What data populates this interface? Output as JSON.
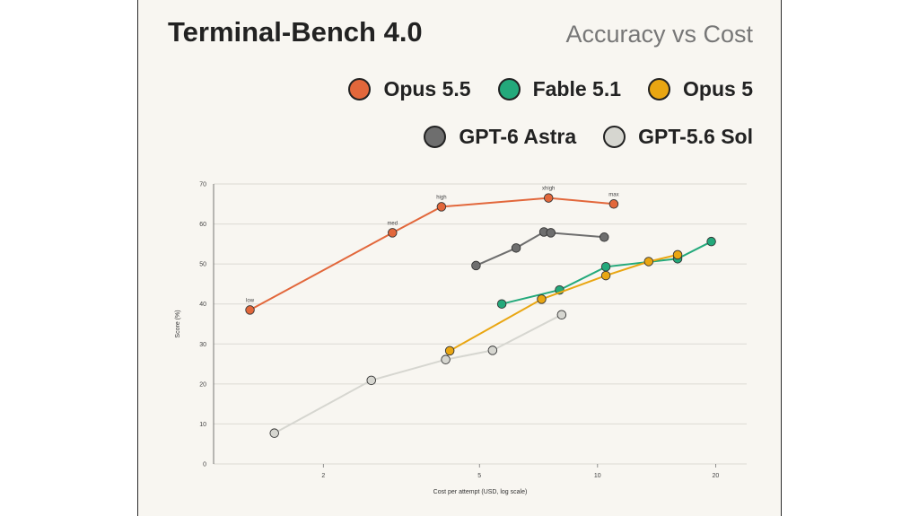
{
  "title": "Terminal-Bench 4.0",
  "subtitle": "Accuracy vs Cost",
  "legend": [
    {
      "name": "Opus 5.5",
      "color": "#e2673b"
    },
    {
      "name": "Fable 5.1",
      "color": "#23a97b"
    },
    {
      "name": "Opus 5",
      "color": "#e9a612"
    },
    {
      "name": "GPT-6 Astra",
      "color": "#6e6e6e"
    },
    {
      "name": "GPT-5.6 Sol",
      "color": "#d6d6d0"
    }
  ],
  "chart_data": {
    "type": "line",
    "title": "Terminal-Bench 4.0",
    "subtitle": "Accuracy vs Cost",
    "xlabel": "Cost per attempt (USD, log scale)",
    "ylabel": "Score (%)",
    "xscale": "log",
    "xlim": [
      1.05,
      24
    ],
    "ylim": [
      0,
      70
    ],
    "xticks": [
      2,
      5,
      10,
      20
    ],
    "yticks": [
      0,
      10,
      20,
      30,
      40,
      50,
      60,
      70
    ],
    "grid": "horizontal",
    "series": [
      {
        "name": "Opus 5.5",
        "color": "#e2673b",
        "x": [
          1.3,
          3.0,
          4.0,
          7.5,
          11.0
        ],
        "y": [
          38.5,
          57.8,
          64.3,
          66.5,
          65.0
        ],
        "labels": [
          "low",
          "med",
          "high",
          "xhigh",
          "max"
        ]
      },
      {
        "name": "GPT-6 Astra",
        "color": "#6e6e6e",
        "x": [
          4.9,
          6.2,
          7.3,
          7.6,
          10.4
        ],
        "y": [
          49.6,
          54.0,
          58.0,
          57.8,
          56.7
        ]
      },
      {
        "name": "Fable 5.1",
        "color": "#23a97b",
        "x": [
          5.7,
          8.0,
          10.5,
          16.0,
          19.5
        ],
        "y": [
          40.0,
          43.5,
          49.3,
          51.3,
          55.6
        ]
      },
      {
        "name": "Opus 5",
        "color": "#e9a612",
        "x": [
          4.2,
          7.2,
          10.5,
          13.5,
          16.0
        ],
        "y": [
          28.3,
          41.2,
          47.1,
          50.6,
          52.3
        ]
      },
      {
        "name": "GPT-5.6 Sol",
        "color": "#d6d6d0",
        "x": [
          1.5,
          2.65,
          4.1,
          5.4,
          8.1
        ],
        "y": [
          7.7,
          20.9,
          26.1,
          28.4,
          37.3
        ]
      }
    ]
  }
}
